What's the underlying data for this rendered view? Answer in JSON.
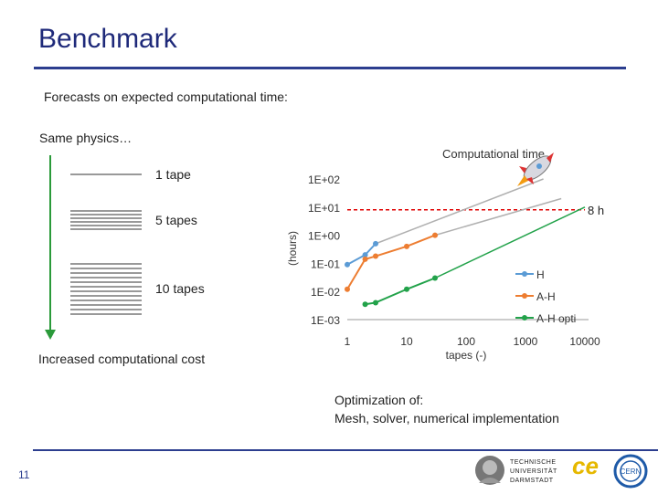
{
  "slide": {
    "title": "Benchmark",
    "subtitle": "Forecasts on expected computational time:",
    "same_physics": "Same physics…",
    "tapes": [
      "1 tape",
      "5 tapes",
      "10 tapes"
    ],
    "increased_cost": "Increased computational cost",
    "optimization_line1": "Optimization of:",
    "optimization_line2": "Mesh, solver, numerical implementation",
    "page_number": "11"
  },
  "logos": {
    "left_text_1": "TECHNISCHE",
    "left_text_2": "UNIVERSITÄT",
    "left_text_3": "DARMSTADT",
    "middle_text": "ce",
    "right_text": "CERN"
  },
  "chart_data": {
    "type": "line",
    "title": "Computational time",
    "xlabel": "tapes (-)",
    "ylabel": "(hours)",
    "x_ticks": [
      "1",
      "10",
      "100",
      "1000",
      "10000"
    ],
    "y_ticks": [
      "1E-03",
      "1E-02",
      "1E-01",
      "1E+00",
      "1E+01",
      "1E+02"
    ],
    "x_scale": "log",
    "y_scale": "log",
    "xlim": [
      1,
      10000
    ],
    "ylim": [
      0.001,
      100
    ],
    "reference_line": {
      "value": 8,
      "label": "8 h",
      "color": "#e00000"
    },
    "series": [
      {
        "name": "H",
        "color": "#5b9bd5",
        "points": [
          [
            1,
            0.09
          ],
          [
            2,
            0.2
          ],
          [
            3,
            0.5
          ]
        ],
        "trend": [
          [
            3,
            0.5
          ],
          [
            2000,
            100
          ]
        ]
      },
      {
        "name": "A-H",
        "color": "#ed7d31",
        "points": [
          [
            1,
            0.012
          ],
          [
            2,
            0.14
          ],
          [
            3,
            0.18
          ],
          [
            10,
            0.4
          ],
          [
            30,
            1.0
          ]
        ],
        "trend": [
          [
            30,
            1.0
          ],
          [
            4000,
            20
          ]
        ]
      },
      {
        "name": "A-H opti",
        "color": "#22a24a",
        "points": [
          [
            2,
            0.0035
          ],
          [
            3,
            0.004
          ],
          [
            10,
            0.012
          ],
          [
            30,
            0.03
          ]
        ],
        "trend": [
          [
            30,
            0.03
          ],
          [
            10000,
            10
          ]
        ]
      }
    ],
    "trend_color": "#b0b0b0",
    "legend_position": "right"
  }
}
